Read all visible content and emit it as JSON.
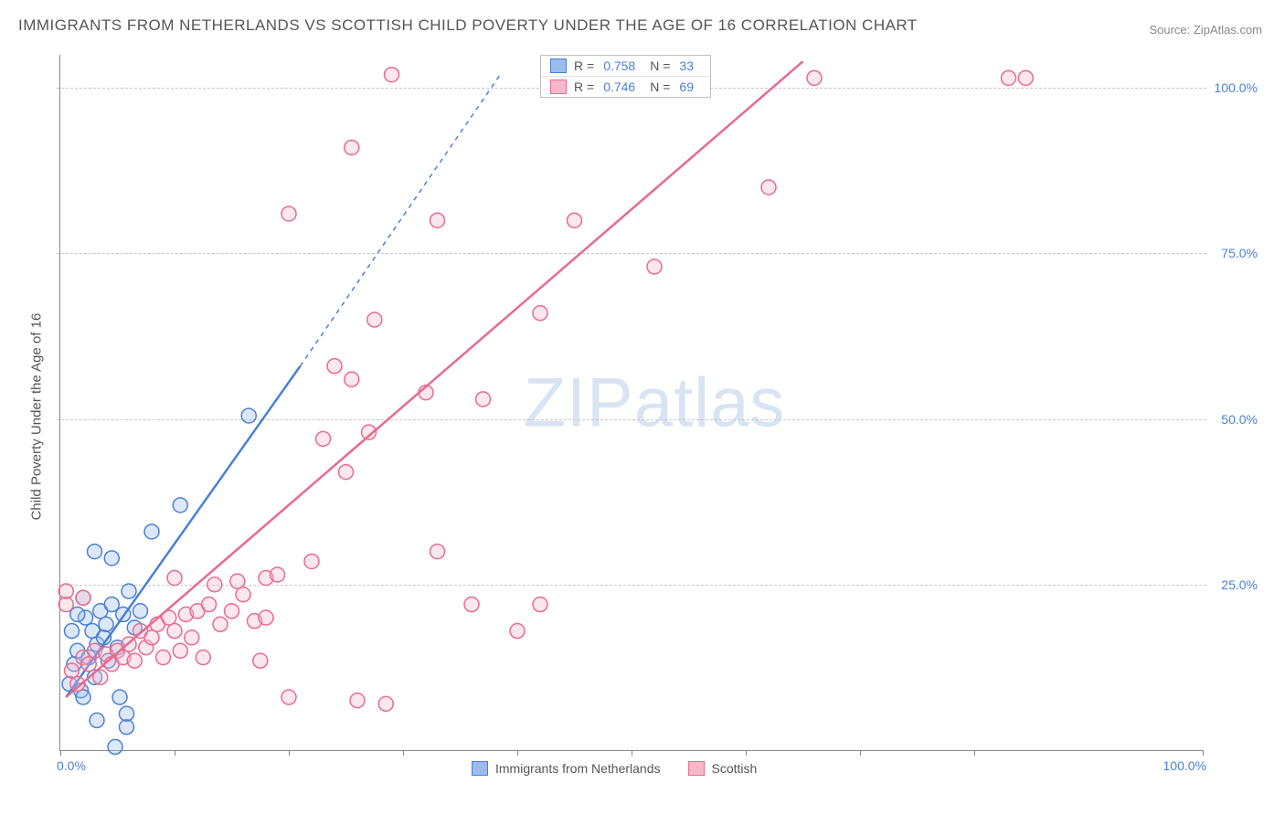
{
  "title": "IMMIGRANTS FROM NETHERLANDS VS SCOTTISH CHILD POVERTY UNDER THE AGE OF 16 CORRELATION CHART",
  "source": "Source: ZipAtlas.com",
  "ylabel": "Child Poverty Under the Age of 16",
  "watermark_zip": "ZIP",
  "watermark_atlas": "atlas",
  "chart": {
    "type": "scatter",
    "xlim": [
      0,
      100
    ],
    "ylim": [
      0,
      105
    ],
    "x_ticks": [
      0,
      10,
      20,
      30,
      40,
      50,
      60,
      70,
      80,
      100
    ],
    "y_gridlines": [
      25,
      50,
      75,
      100
    ],
    "y_tick_labels": [
      "25.0%",
      "50.0%",
      "75.0%",
      "100.0%"
    ],
    "x_tick_labels": {
      "0": "0.0%",
      "100": "100.0%"
    },
    "background_color": "#ffffff",
    "grid_color": "#c8c8c8",
    "axis_color": "#888888",
    "marker_radius": 8,
    "series": [
      {
        "name": "Immigrants from Netherlands",
        "color_stroke": "#4a80d6",
        "color_fill": "#9cbced",
        "r_value": "0.758",
        "n_value": "33",
        "trend": {
          "x1": 0.5,
          "y1": 8,
          "x2": 21,
          "y2": 58,
          "dash_x2": 38.5,
          "dash_y2": 102
        },
        "points": [
          [
            0.8,
            10
          ],
          [
            1.2,
            13
          ],
          [
            1.5,
            15
          ],
          [
            1.8,
            9
          ],
          [
            2.0,
            8
          ],
          [
            2.2,
            20
          ],
          [
            2.5,
            14
          ],
          [
            2.8,
            18
          ],
          [
            3.0,
            11
          ],
          [
            3.2,
            16
          ],
          [
            3.2,
            4.5
          ],
          [
            3.5,
            21
          ],
          [
            3.8,
            17
          ],
          [
            4.0,
            19
          ],
          [
            4.2,
            13.5
          ],
          [
            4.5,
            22
          ],
          [
            5.0,
            15.5
          ],
          [
            5.2,
            8.0
          ],
          [
            5.5,
            20.5
          ],
          [
            5.8,
            3.5
          ],
          [
            6.0,
            24
          ],
          [
            6.5,
            18.5
          ],
          [
            7.0,
            21
          ],
          [
            3.0,
            30
          ],
          [
            4.5,
            29
          ],
          [
            1.0,
            18
          ],
          [
            1.5,
            20.5
          ],
          [
            2.0,
            23
          ],
          [
            8.0,
            33
          ],
          [
            10.5,
            37
          ],
          [
            16.5,
            50.5
          ],
          [
            5.8,
            5.5
          ],
          [
            4.8,
            0.5
          ]
        ]
      },
      {
        "name": "Scottish",
        "color_stroke": "#e86a8f",
        "color_fill": "#f7b9ca",
        "r_value": "0.746",
        "n_value": "69",
        "trend": {
          "x1": 0.5,
          "y1": 8,
          "x2": 65,
          "y2": 104
        },
        "points": [
          [
            1.0,
            12
          ],
          [
            1.5,
            10
          ],
          [
            2.0,
            14
          ],
          [
            2.5,
            13
          ],
          [
            3.0,
            15
          ],
          [
            3.5,
            11
          ],
          [
            4.0,
            14.5
          ],
          [
            4.5,
            13
          ],
          [
            5.0,
            15
          ],
          [
            5.5,
            14
          ],
          [
            6.0,
            16
          ],
          [
            6.5,
            13.5
          ],
          [
            7.0,
            18
          ],
          [
            7.5,
            15.5
          ],
          [
            8.0,
            17
          ],
          [
            8.5,
            19
          ],
          [
            9.0,
            14
          ],
          [
            9.5,
            20
          ],
          [
            10,
            18
          ],
          [
            10.5,
            15
          ],
          [
            11,
            20.5
          ],
          [
            11.5,
            17
          ],
          [
            12,
            21
          ],
          [
            12.5,
            14
          ],
          [
            13,
            22
          ],
          [
            14,
            19
          ],
          [
            15,
            21
          ],
          [
            16,
            23.5
          ],
          [
            17,
            19.5
          ],
          [
            17.5,
            13.5
          ],
          [
            18,
            20
          ],
          [
            13.5,
            25
          ],
          [
            15.5,
            25.5
          ],
          [
            18,
            26
          ],
          [
            19,
            26.5
          ],
          [
            10,
            26
          ],
          [
            2,
            23
          ],
          [
            0.5,
            22
          ],
          [
            0.5,
            24
          ],
          [
            22,
            28.5
          ],
          [
            33,
            30
          ],
          [
            36,
            22
          ],
          [
            40,
            18
          ],
          [
            42,
            22
          ],
          [
            20,
            8
          ],
          [
            26,
            7.5
          ],
          [
            28.5,
            7
          ],
          [
            25,
            42
          ],
          [
            27,
            48
          ],
          [
            23,
            47
          ],
          [
            25.5,
            56
          ],
          [
            24,
            58
          ],
          [
            27.5,
            65
          ],
          [
            32,
            54
          ],
          [
            37,
            53
          ],
          [
            42,
            66
          ],
          [
            33,
            80
          ],
          [
            45,
            80
          ],
          [
            52,
            73
          ],
          [
            20,
            81
          ],
          [
            25.5,
            91
          ],
          [
            29,
            102
          ],
          [
            45,
            101.5
          ],
          [
            46.5,
            101.5
          ],
          [
            47.5,
            101.5
          ],
          [
            62,
            85
          ],
          [
            66,
            101.5
          ],
          [
            83,
            101.5
          ],
          [
            84.5,
            101.5
          ]
        ]
      }
    ]
  },
  "legend_bottom": [
    {
      "label": "Immigrants from Netherlands",
      "fill": "#9cbced",
      "stroke": "#4a80d6"
    },
    {
      "label": "Scottish",
      "fill": "#f7b9ca",
      "stroke": "#e86a8f"
    }
  ]
}
